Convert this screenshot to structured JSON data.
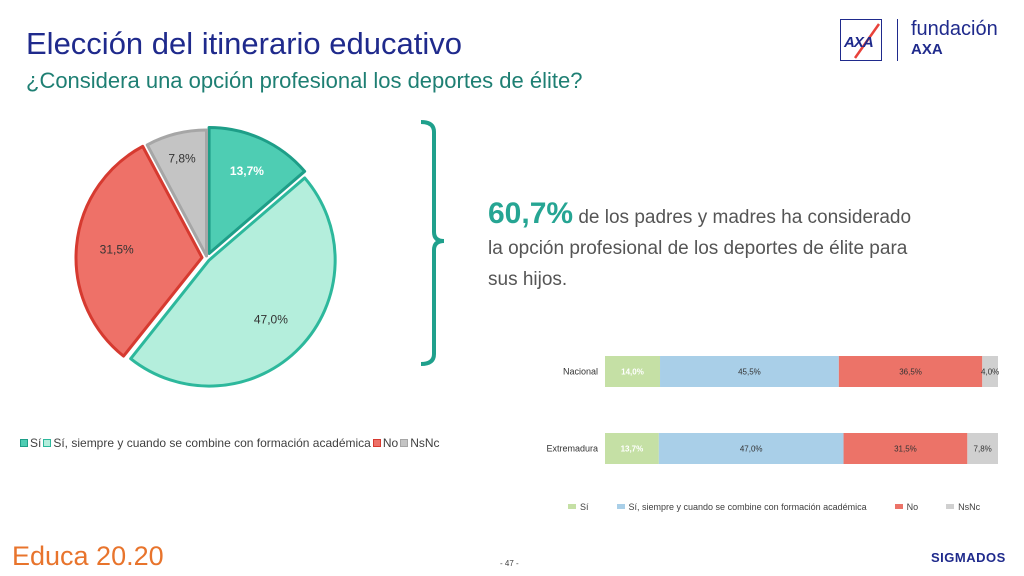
{
  "header": {
    "title": "Elección del itinerario educativo",
    "subtitle": "¿Considera una opción profesional los deportes de élite?"
  },
  "logo": {
    "mark": "AXA",
    "line1": "fundación",
    "line2": "AXA"
  },
  "highlight": {
    "big": "60,7%",
    "text": " de los padres y madres ha considerado la opción profesional de los deportes de élite para sus hijos."
  },
  "footer": {
    "brand": "Educa 20.20",
    "page": "- 47 -",
    "company": "SIGMADOS"
  },
  "colors": {
    "si": "#4ecdb3",
    "si_border": "#1e9e88",
    "si_cond": "#b4eedc",
    "si_cond_border": "#2db89c",
    "no": "#ee7168",
    "no_border": "#d63a30",
    "nsnc": "#c4c4c4",
    "nsnc_border": "#a6a6a6",
    "bar_si": "#c5e0a5",
    "bar_si_cond": "#a9cfe8",
    "bar_no": "#ec7368",
    "bar_nsnc": "#d0d0d0",
    "bracket": "#1fa08c"
  },
  "chart_data": [
    {
      "type": "pie",
      "labels": [
        "Sí",
        "Sí, siempre y cuando se combine con formación académica",
        "No",
        "NsNc"
      ],
      "values": [
        13.7,
        47.0,
        31.5,
        7.8
      ],
      "value_labels": [
        "13,7%",
        "47,0%",
        "31,5%",
        "7,8%"
      ],
      "legend": "bottom"
    },
    {
      "type": "bar",
      "orientation": "horizontal",
      "stacked": true,
      "categories": [
        "Nacional",
        "Extremadura"
      ],
      "series": [
        {
          "name": "Sí",
          "values": [
            14.0,
            13.7
          ],
          "labels": [
            "14,0%",
            "13,7%"
          ]
        },
        {
          "name": "Sí, siempre y cuando se combine con formación académica",
          "values": [
            45.5,
            47.0
          ],
          "labels": [
            "45,5%",
            "47,0%"
          ]
        },
        {
          "name": "No",
          "values": [
            36.5,
            31.5
          ],
          "labels": [
            "36,5%",
            "31,5%"
          ]
        },
        {
          "name": "NsNc",
          "values": [
            4.0,
            7.8
          ],
          "labels": [
            "4,0%",
            "7,8%"
          ]
        }
      ],
      "xlim": [
        0,
        100
      ],
      "legend": "bottom"
    }
  ]
}
